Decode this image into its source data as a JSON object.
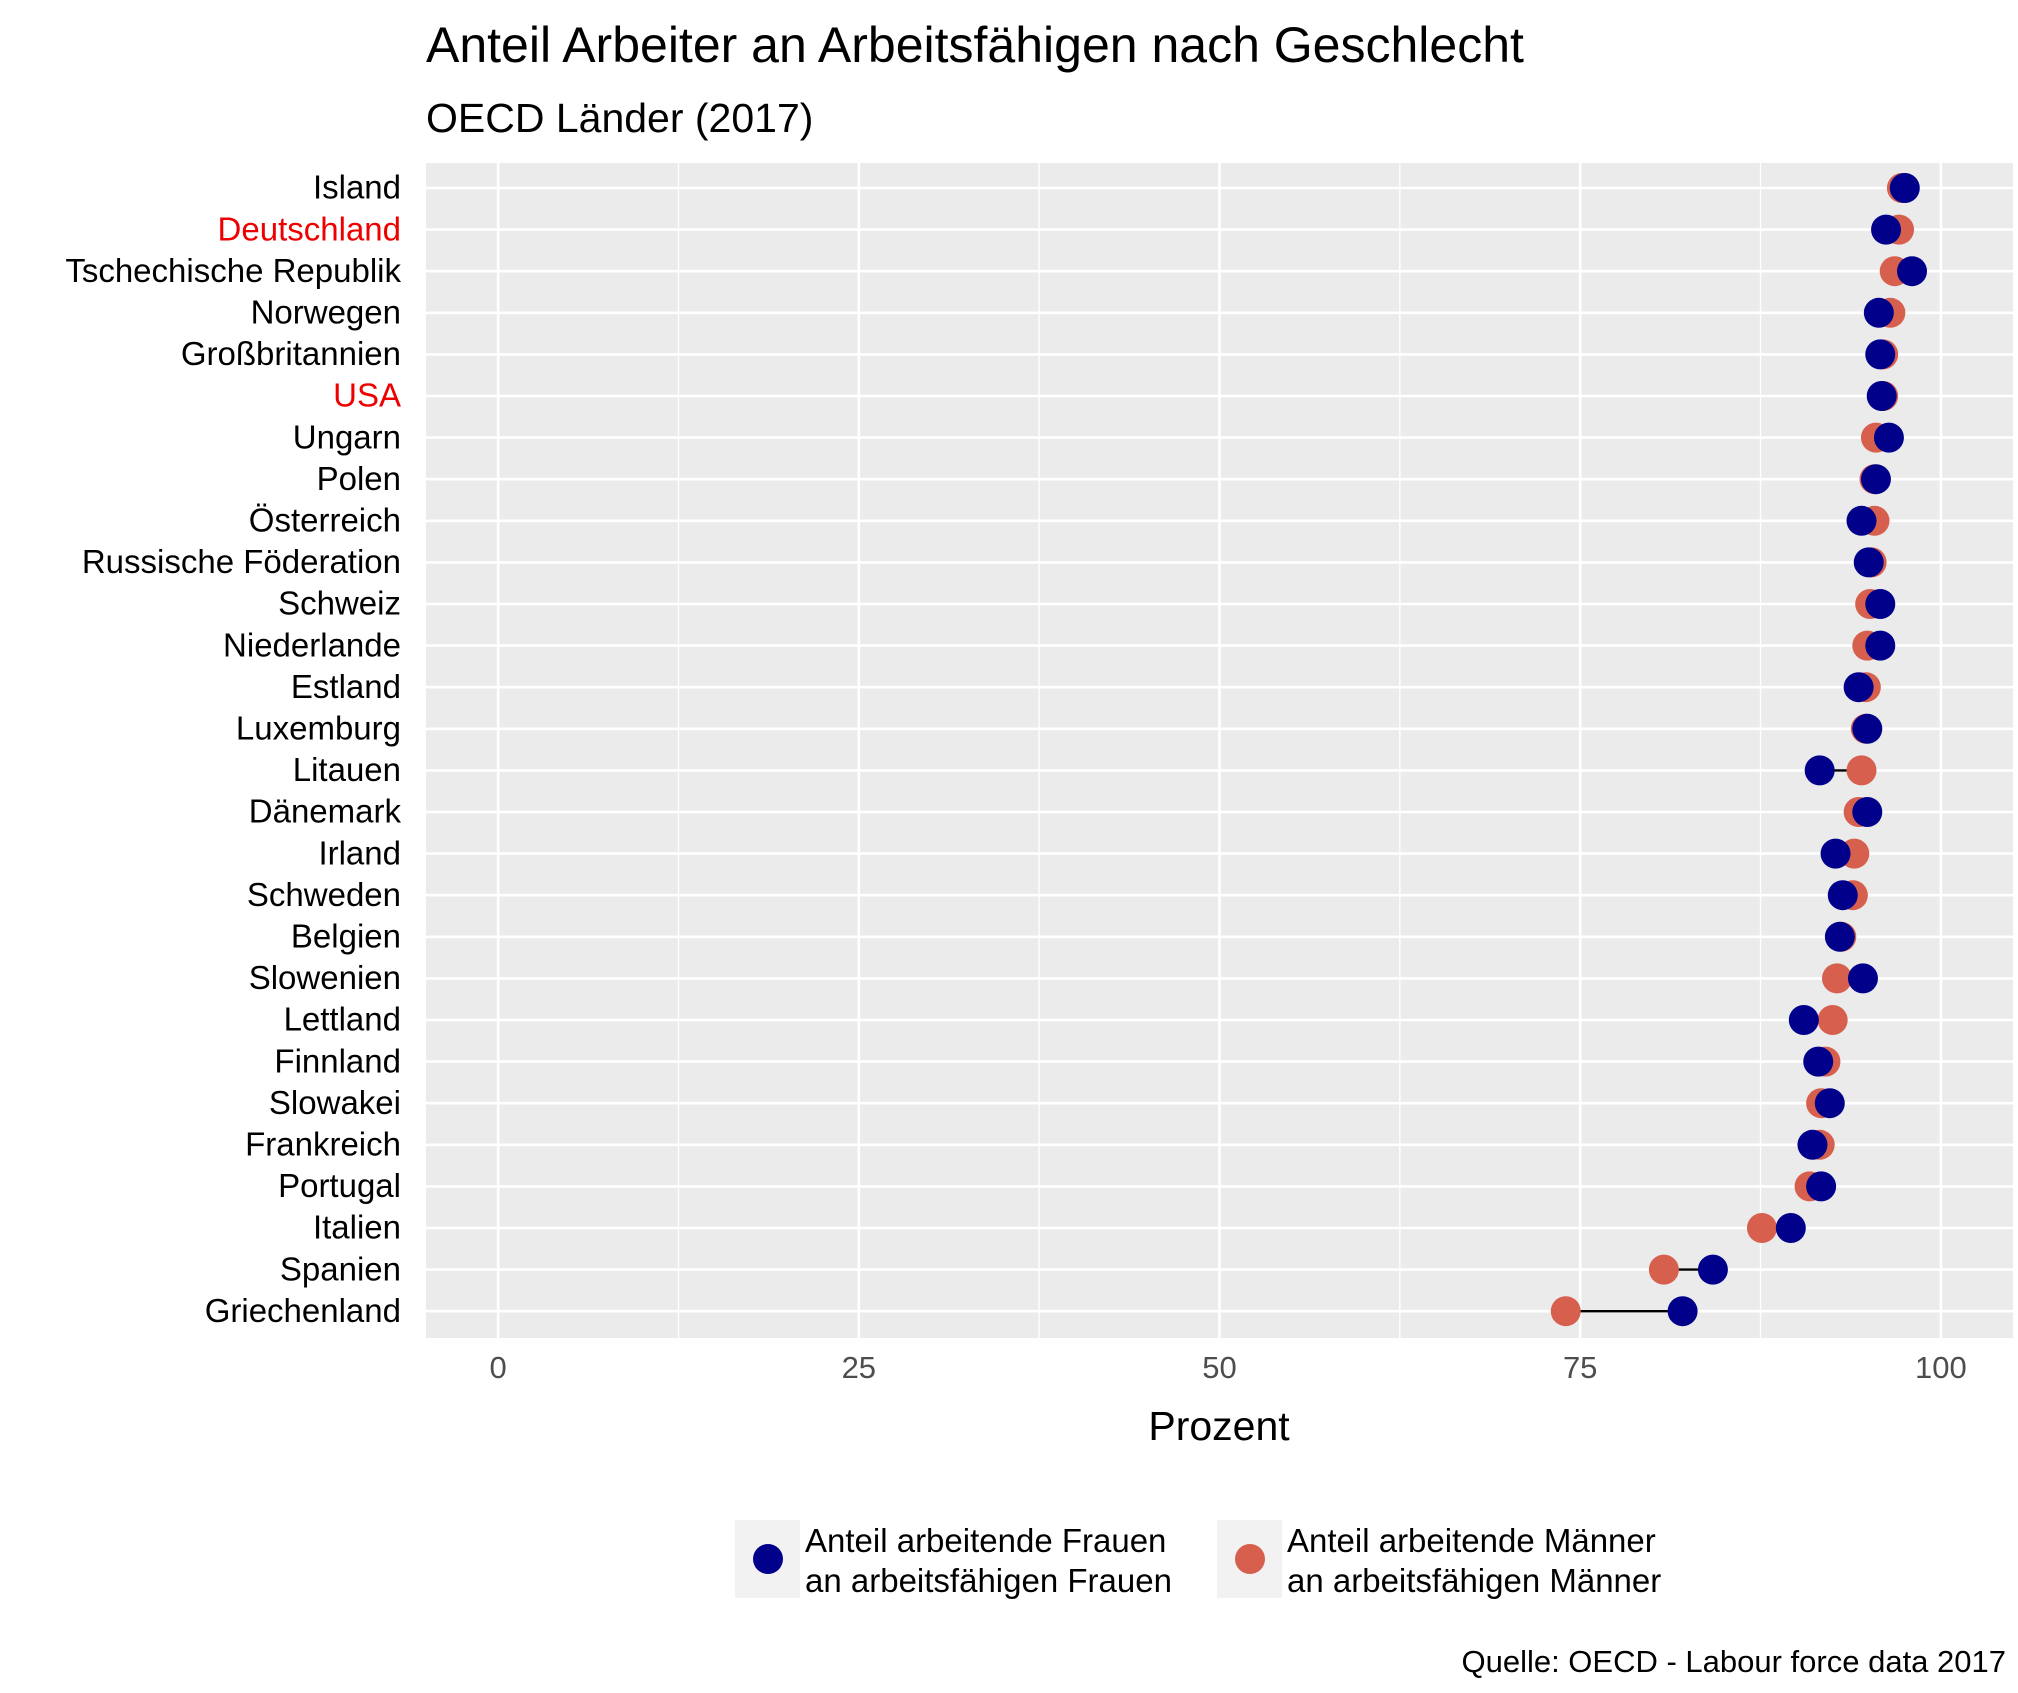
{
  "chart_data": {
    "type": "scatter",
    "subtype": "dumbbell",
    "title": "Anteil Arbeiter an Arbeitsfähigen nach Geschlecht",
    "subtitle": "OECD Länder (2017)",
    "xlabel": "Prozent",
    "ylabel": "",
    "xlim": [
      -5,
      105
    ],
    "xticks": [
      0,
      25,
      50,
      75,
      100
    ],
    "grid": true,
    "legend_position": "bottom",
    "caption": "Quelle: OECD - Labour force data 2017",
    "highlight_color": "#ee0000",
    "categories": [
      "Island",
      "Deutschland",
      "Tschechische Republik",
      "Norwegen",
      "Großbritannien",
      "USA",
      "Ungarn",
      "Polen",
      "Österreich",
      "Russische Föderation",
      "Schweiz",
      "Niederlande",
      "Estland",
      "Luxemburg",
      "Litauen",
      "Dänemark",
      "Irland",
      "Schweden",
      "Belgien",
      "Slowenien",
      "Lettland",
      "Finnland",
      "Slowakei",
      "Frankreich",
      "Portugal",
      "Italien",
      "Spanien",
      "Griechenland"
    ],
    "highlighted": [
      "Deutschland",
      "USA"
    ],
    "series": [
      {
        "name": "Anteil arbeitende Frauen\nan arbeitsfähigen Frauen",
        "name_lines": [
          "Anteil arbeitende Frauen",
          "an arbeitsfähigen Frauen"
        ],
        "color": "#00008b",
        "values": [
          97.5,
          96.2,
          98.0,
          95.7,
          95.8,
          95.9,
          96.4,
          95.5,
          94.5,
          95.0,
          95.8,
          95.8,
          94.3,
          94.9,
          91.6,
          94.9,
          92.7,
          93.2,
          93.0,
          94.6,
          90.5,
          91.5,
          92.3,
          91.1,
          91.7,
          89.6,
          84.2,
          82.1
        ]
      },
      {
        "name": "Anteil arbeitende Männer\nan arbeitsfähigen Männer",
        "name_lines": [
          "Anteil arbeitende Männer",
          "an arbeitsfähigen Männer"
        ],
        "color": "#d6604d",
        "values": [
          97.3,
          97.1,
          96.8,
          96.5,
          96.0,
          96.0,
          95.5,
          95.4,
          95.4,
          95.2,
          95.1,
          94.9,
          94.8,
          94.8,
          94.5,
          94.3,
          94.0,
          93.9,
          93.1,
          92.8,
          92.5,
          92.0,
          91.7,
          91.6,
          90.9,
          87.6,
          80.8,
          74.0
        ]
      }
    ]
  }
}
